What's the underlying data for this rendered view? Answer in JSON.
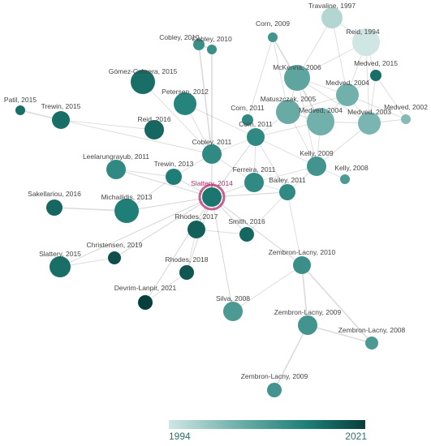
{
  "legend": {
    "min_year": "1994",
    "max_year": "2021"
  },
  "colors": {
    "scale_light": "#cfe6e4",
    "scale_mid": "#1f7f78",
    "scale_dark": "#073f3b",
    "focus_ring": "#c0457a",
    "edge": "#999999"
  },
  "focus_node": "Slattery, 2014",
  "nodes": [
    {
      "id": "travaline1997",
      "label": "Travaline, 1997",
      "year": 1997
    },
    {
      "id": "reid1994",
      "label": "Reid, 1994",
      "year": 1994
    },
    {
      "id": "corn2009",
      "label": "Corn, 2009",
      "year": 2009
    },
    {
      "id": "cobley2010a",
      "label": "Cobley, 2010",
      "year": 2010
    },
    {
      "id": "cobley2010b",
      "label": "Cobley, 2010",
      "year": 2010
    },
    {
      "id": "medved2015",
      "label": "Medved, 2015",
      "year": 2015
    },
    {
      "id": "gomez2015",
      "label": "Gómez-Cabrera, 2015",
      "year": 2015
    },
    {
      "id": "mckenna2006",
      "label": "McKenna, 2006",
      "year": 2006
    },
    {
      "id": "medved2004a",
      "label": "Medved, 2004",
      "year": 2004
    },
    {
      "id": "patil2015",
      "label": "Patil, 2015",
      "year": 2015
    },
    {
      "id": "trewin2015",
      "label": "Trewin, 2015",
      "year": 2015
    },
    {
      "id": "petersen2012",
      "label": "Petersen, 2012",
      "year": 2012
    },
    {
      "id": "matuszczak2005",
      "label": "Matuszczak, 2005",
      "year": 2005
    },
    {
      "id": "medved2002",
      "label": "Medved, 2002",
      "year": 2002
    },
    {
      "id": "corn2011a",
      "label": "Corn, 2011",
      "year": 2011
    },
    {
      "id": "reid2016",
      "label": "Reid, 2016",
      "year": 2016
    },
    {
      "id": "medved2004b",
      "label": "Medved, 2004",
      "year": 2004
    },
    {
      "id": "medved2003",
      "label": "Medved, 2003",
      "year": 2003
    },
    {
      "id": "corn2011b",
      "label": "Corn, 2011",
      "year": 2011
    },
    {
      "id": "cobley2011",
      "label": "Cobley, 2011",
      "year": 2011
    },
    {
      "id": "kelly2009",
      "label": "Kelly, 2009",
      "year": 2009
    },
    {
      "id": "leelarungrayub2011",
      "label": "Leelarungrayub, 2011",
      "year": 2011
    },
    {
      "id": "kelly2008",
      "label": "Kelly, 2008",
      "year": 2008
    },
    {
      "id": "trewin2013",
      "label": "Trewin, 2013",
      "year": 2013
    },
    {
      "id": "ferreira2011",
      "label": "Ferreira, 2011",
      "year": 2011
    },
    {
      "id": "bailey2011",
      "label": "Bailey, 2011",
      "year": 2011
    },
    {
      "id": "slattery2014",
      "label": "Slattery, 2014",
      "year": 2014
    },
    {
      "id": "sakellariou2016",
      "label": "Sakellariou, 2016",
      "year": 2016
    },
    {
      "id": "michailidis2013",
      "label": "Michailidis, 2013",
      "year": 2013
    },
    {
      "id": "rhodes2017",
      "label": "Rhodes, 2017",
      "year": 2017
    },
    {
      "id": "smith2016",
      "label": "Smith, 2016",
      "year": 2016
    },
    {
      "id": "christensen2019",
      "label": "Christensen, 2019",
      "year": 2019
    },
    {
      "id": "slattery2015",
      "label": "Slattery, 2015",
      "year": 2015
    },
    {
      "id": "rhodes2018",
      "label": "Rhodes, 2018",
      "year": 2018
    },
    {
      "id": "zembron2010",
      "label": "Zembron-Lacny, 2010",
      "year": 2010
    },
    {
      "id": "devrim2021",
      "label": "Devrim-Lanpir, 2021",
      "year": 2021
    },
    {
      "id": "silva2008",
      "label": "Silva, 2008",
      "year": 2008
    },
    {
      "id": "zembron2009a",
      "label": "Zembron-Lacny, 2009",
      "year": 2009
    },
    {
      "id": "zembron2008",
      "label": "Zembron-Lacny, 2008",
      "year": 2008
    },
    {
      "id": "zembron2009b",
      "label": "Zembron-Lacny, 2009",
      "year": 2009
    }
  ],
  "edges": [
    [
      "travaline1997",
      "reid1994"
    ],
    [
      "travaline1997",
      "mckenna2006"
    ],
    [
      "travaline1997",
      "medved2004a"
    ],
    [
      "reid1994",
      "mckenna2006"
    ],
    [
      "reid1994",
      "medved2004a"
    ],
    [
      "reid1994",
      "medved2003"
    ],
    [
      "reid1994",
      "medved2015"
    ],
    [
      "corn2009",
      "mckenna2006"
    ],
    [
      "corn2009",
      "corn2011a"
    ],
    [
      "corn2009",
      "matuszczak2005"
    ],
    [
      "corn2009",
      "medved2004b"
    ],
    [
      "cobley2010a",
      "cobley2010b"
    ],
    [
      "cobley2010a",
      "cobley2011"
    ],
    [
      "cobley2010b",
      "cobley2011"
    ],
    [
      "medved2015",
      "medved2004a"
    ],
    [
      "medved2015",
      "medved2003"
    ],
    [
      "medved2015",
      "medved2002"
    ],
    [
      "mckenna2006",
      "medved2004a"
    ],
    [
      "mckenna2006",
      "matuszczak2005"
    ],
    [
      "mckenna2006",
      "medved2004b"
    ],
    [
      "mckenna2006",
      "medved2003"
    ],
    [
      "mckenna2006",
      "kelly2009"
    ],
    [
      "medved2004a",
      "medved2003"
    ],
    [
      "medved2004a",
      "medved2002"
    ],
    [
      "medved2004a",
      "medved2004b"
    ],
    [
      "medved2004a",
      "matuszczak2005"
    ],
    [
      "patil2015",
      "trewin2015"
    ],
    [
      "trewin2015",
      "cobley2011"
    ],
    [
      "trewin2015",
      "reid2016"
    ],
    [
      "gomez2015",
      "cobley2011"
    ],
    [
      "petersen2012",
      "cobley2011"
    ],
    [
      "petersen2012",
      "corn2011b"
    ],
    [
      "matuszczak2005",
      "medved2004b"
    ],
    [
      "matuszczak2005",
      "corn2011b"
    ],
    [
      "matuszczak2005",
      "kelly2009"
    ],
    [
      "medved2004b",
      "medved2003"
    ],
    [
      "medved2004b",
      "corn2011b"
    ],
    [
      "medved2004b",
      "kelly2009"
    ],
    [
      "medved2003",
      "medved2002"
    ],
    [
      "medved2003",
      "kelly2009"
    ],
    [
      "corn2011a",
      "corn2011b"
    ],
    [
      "corn2011b",
      "cobley2011"
    ],
    [
      "corn2011b",
      "ferreira2011"
    ],
    [
      "corn2011b",
      "slattery2014"
    ],
    [
      "corn2011b",
      "bailey2011"
    ],
    [
      "kelly2009",
      "kelly2008"
    ],
    [
      "kelly2009",
      "bailey2011"
    ],
    [
      "kelly2009",
      "ferreira2011"
    ],
    [
      "kelly2009",
      "corn2011b"
    ],
    [
      "cobley2011",
      "slattery2014"
    ],
    [
      "cobley2011",
      "trewin2013"
    ],
    [
      "cobley2011",
      "ferreira2011"
    ],
    [
      "leelarungrayub2011",
      "slattery2014"
    ],
    [
      "leelarungrayub2011",
      "trewin2013"
    ],
    [
      "trewin2013",
      "slattery2014"
    ],
    [
      "trewin2013",
      "michailidis2013"
    ],
    [
      "ferreira2011",
      "slattery2014"
    ],
    [
      "ferreira2011",
      "bailey2011"
    ],
    [
      "bailey2011",
      "slattery2014"
    ],
    [
      "bailey2011",
      "zembron2010"
    ],
    [
      "bailey2011",
      "smith2016"
    ],
    [
      "sakellariou2016",
      "michailidis2013"
    ],
    [
      "michailidis2013",
      "slattery2014"
    ],
    [
      "slattery2014",
      "rhodes2017"
    ],
    [
      "slattery2014",
      "smith2016"
    ],
    [
      "slattery2014",
      "rhodes2018"
    ],
    [
      "slattery2014",
      "slattery2015"
    ],
    [
      "slattery2014",
      "christensen2019"
    ],
    [
      "slattery2014",
      "devrim2021"
    ],
    [
      "slattery2014",
      "silva2008"
    ],
    [
      "slattery2014",
      "zembron2010"
    ],
    [
      "rhodes2017",
      "rhodes2018"
    ],
    [
      "rhodes2017",
      "smith2016"
    ],
    [
      "rhodes2018",
      "devrim2021"
    ],
    [
      "slattery2015",
      "christensen2019"
    ],
    [
      "zembron2010",
      "zembron2009a"
    ],
    [
      "zembron2010",
      "zembron2008"
    ],
    [
      "zembron2009a",
      "zembron2009b"
    ],
    [
      "zembron2009a",
      "zembron2008"
    ],
    [
      "silva2008",
      "zembron2010"
    ]
  ]
}
